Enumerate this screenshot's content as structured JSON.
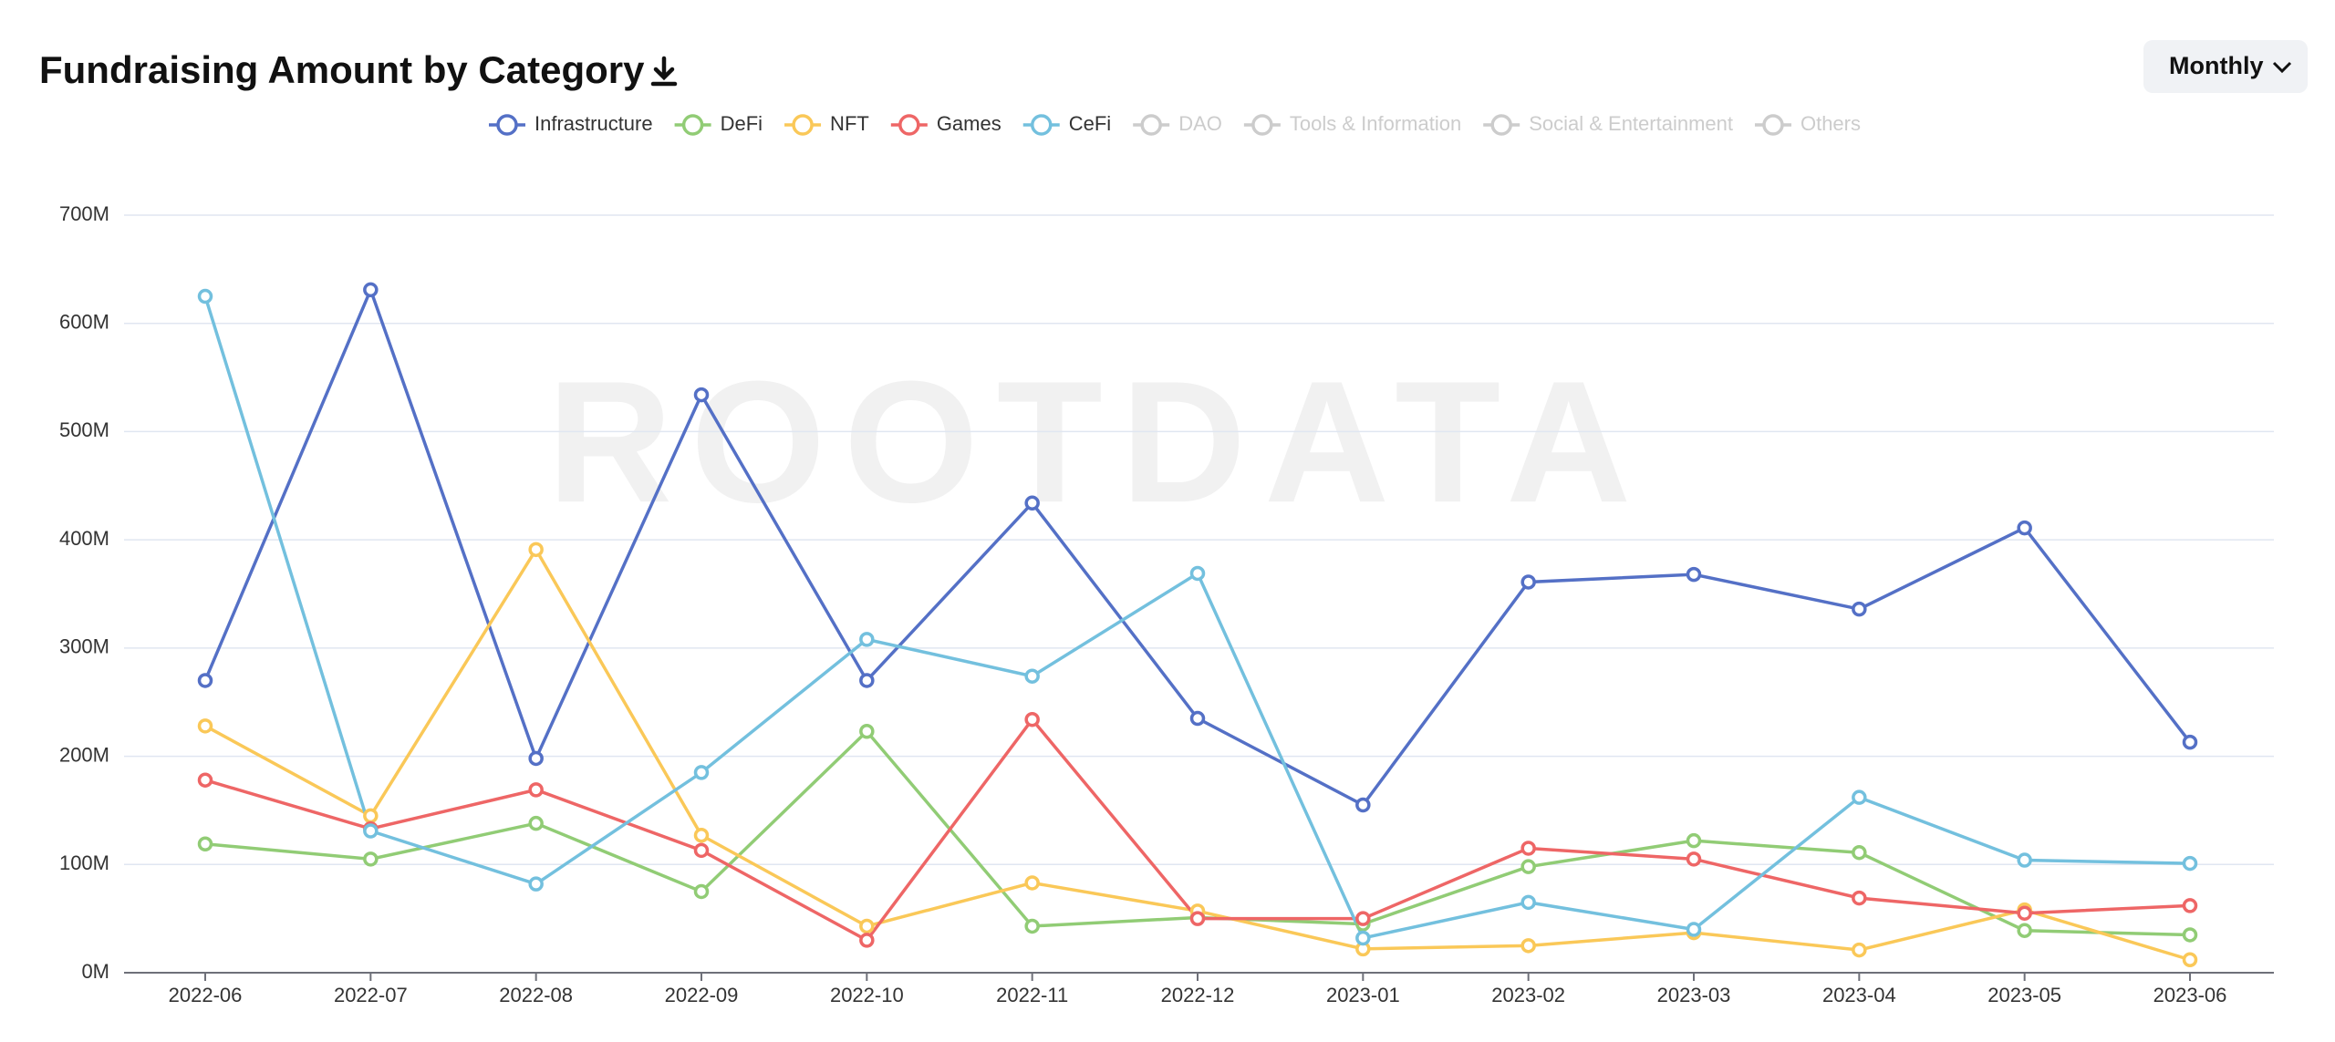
{
  "chart_data": {
    "type": "line",
    "title": "Fundraising Amount by Category",
    "period_button": "Monthly",
    "watermark": "ROOTDATA",
    "categories": [
      "2022-06",
      "2022-07",
      "2022-08",
      "2022-09",
      "2022-10",
      "2022-11",
      "2022-12",
      "2023-01",
      "2023-02",
      "2023-03",
      "2023-04",
      "2023-05",
      "2023-06"
    ],
    "series": [
      {
        "name": "Infrastructure",
        "color": "#5470c6",
        "values": [
          270,
          631,
          198,
          534,
          270,
          434,
          235,
          155,
          361,
          368,
          336,
          411,
          213
        ]
      },
      {
        "name": "DeFi",
        "color": "#91cc75",
        "values": [
          119,
          105,
          138,
          75,
          223,
          43,
          51,
          45,
          98,
          122,
          111,
          39,
          35
        ]
      },
      {
        "name": "NFT",
        "color": "#fac858",
        "values": [
          228,
          145,
          391,
          127,
          43,
          83,
          57,
          22,
          25,
          37,
          21,
          58,
          12
        ]
      },
      {
        "name": "Games",
        "color": "#ee6666",
        "values": [
          178,
          133,
          169,
          113,
          30,
          234,
          50,
          50,
          115,
          105,
          69,
          55,
          62
        ]
      },
      {
        "name": "CeFi",
        "color": "#73c0de",
        "values": [
          625,
          131,
          82,
          185,
          308,
          274,
          369,
          32,
          65,
          40,
          162,
          104,
          101
        ]
      }
    ],
    "inactive_legend": [
      "DAO",
      "Tools & Information",
      "Social & Entertainment",
      "Others"
    ],
    "ylim": [
      0,
      700
    ],
    "yticks": [
      {
        "value": 0,
        "label": "0M"
      },
      {
        "value": 100,
        "label": "100M"
      },
      {
        "value": 200,
        "label": "200M"
      },
      {
        "value": 300,
        "label": "300M"
      },
      {
        "value": 400,
        "label": "400M"
      },
      {
        "value": 500,
        "label": "500M"
      },
      {
        "value": 600,
        "label": "600M"
      },
      {
        "value": 700,
        "label": "700M"
      }
    ],
    "grid": true
  }
}
